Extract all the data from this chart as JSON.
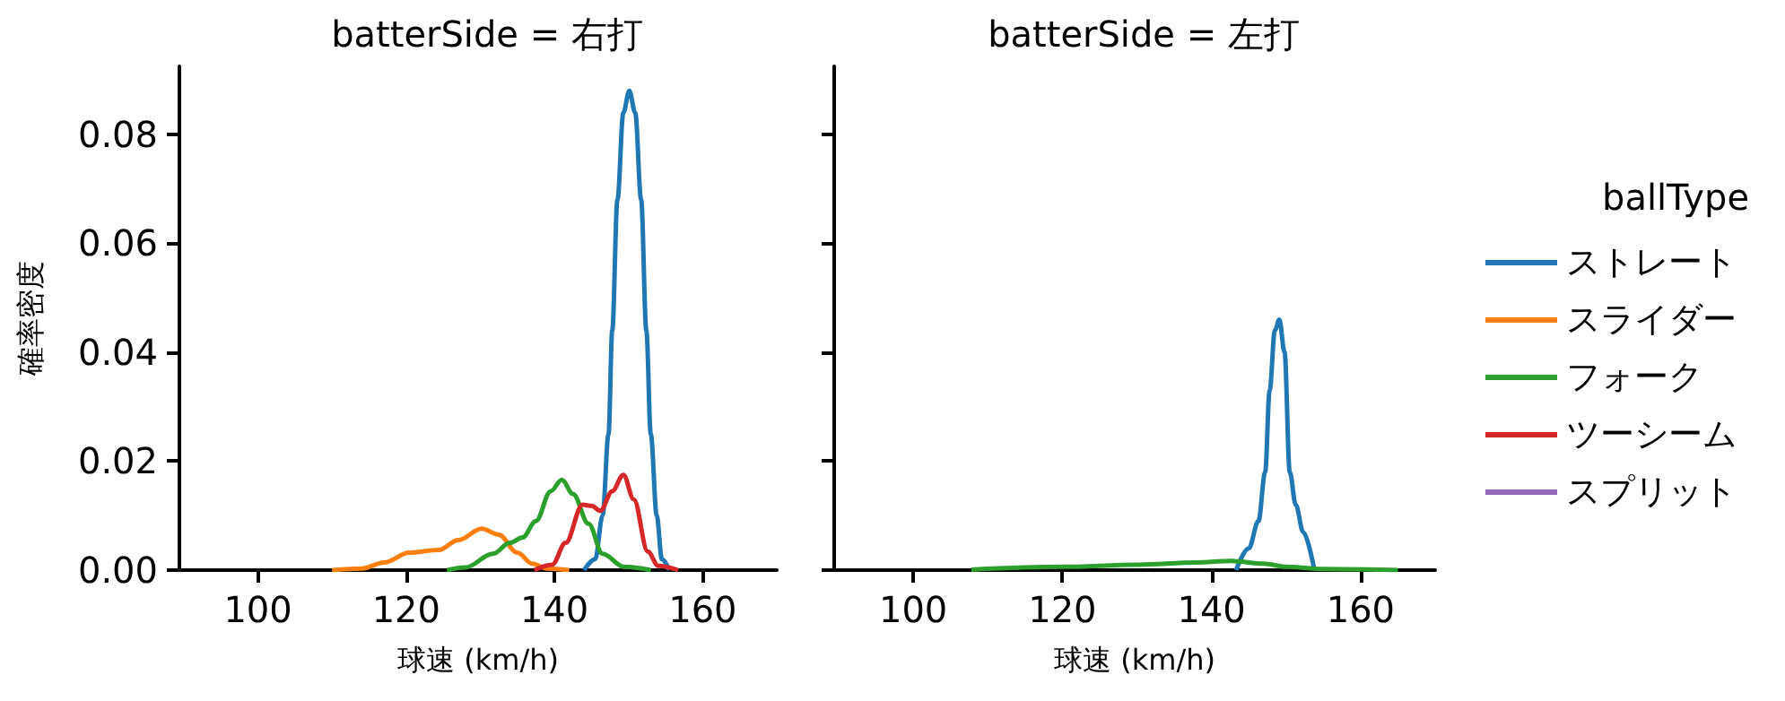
{
  "chart_data": [
    {
      "type": "line",
      "title": "batterSide = 右打",
      "xlabel": "球速 (km/h)",
      "ylabel": "確率密度",
      "xlim": [
        89.4,
        170
      ],
      "ylim": [
        0,
        0.0925
      ],
      "xticks": [
        100,
        120,
        140,
        160
      ],
      "yticks": [
        {
          "value": 0,
          "label": "0.00"
        },
        {
          "value": 0.02,
          "label": "0.02"
        },
        {
          "value": 0.04,
          "label": "0.04"
        },
        {
          "value": 0.06,
          "label": "0.06"
        },
        {
          "value": 0.08,
          "label": "0.08"
        }
      ],
      "grid": false,
      "legend": false,
      "series": [
        {
          "color": "#1f77b4",
          "x": [
            144,
            145.5,
            146.5,
            147.3,
            147.8,
            148.5,
            149.3,
            150.1,
            150.9,
            151.7,
            152.4,
            153,
            153.8,
            154.5,
            155.5
          ],
          "values": [
            0,
            0.002,
            0.01,
            0.025,
            0.044,
            0.068,
            0.084,
            0.088,
            0.084,
            0.068,
            0.044,
            0.025,
            0.01,
            0.002,
            0
          ]
        },
        {
          "color": "#ff7f0e",
          "x": [
            110,
            114,
            117,
            120.4,
            124.4,
            127,
            130.2,
            132.5,
            135,
            137,
            139,
            142
          ],
          "values": [
            0,
            0.0003,
            0.0014,
            0.0032,
            0.0037,
            0.0055,
            0.0076,
            0.0065,
            0.0032,
            0.0012,
            0.0003,
            0
          ]
        },
        {
          "color": "#2ca02c",
          "x": [
            125.5,
            128,
            131.7,
            134,
            135.7,
            137.5,
            139.5,
            141,
            142.5,
            144.6,
            146.5,
            149.4,
            153
          ],
          "values": [
            0,
            0.0005,
            0.003,
            0.005,
            0.006,
            0.009,
            0.0145,
            0.0166,
            0.014,
            0.0085,
            0.003,
            0.0006,
            0
          ]
        },
        {
          "color": "#d62728",
          "x": [
            137.3,
            139.7,
            141.5,
            143.8,
            145,
            146.2,
            147.8,
            149.3,
            150.7,
            152.6,
            154,
            156.7
          ],
          "values": [
            0,
            0.001,
            0.005,
            0.012,
            0.0118,
            0.0109,
            0.0145,
            0.0175,
            0.013,
            0.0034,
            0.0008,
            0
          ]
        }
      ]
    },
    {
      "type": "line",
      "title": "batterSide = 左打",
      "xlabel": "球速 (km/h)",
      "legend_title": "ballType",
      "xlim": [
        89.4,
        170
      ],
      "ylim": [
        0,
        0.0925
      ],
      "xticks": [
        100,
        120,
        140,
        160
      ],
      "yticks": [
        0,
        0.02,
        0.04,
        0.06,
        0.08
      ],
      "tick_labels": "x",
      "grid": false,
      "legend": "right",
      "series": [
        {
          "name": "ストレート",
          "color": "#1f77b4",
          "x": [
            143.3,
            145,
            146.3,
            147.2,
            147.8,
            148.5,
            149.1,
            149.8,
            150.5,
            151.3,
            152.3,
            153.8
          ],
          "values": [
            0,
            0.004,
            0.009,
            0.018,
            0.033,
            0.044,
            0.046,
            0.04,
            0.018,
            0.012,
            0.007,
            0
          ]
        },
        {
          "name": "スライダー",
          "color": "#ff7f0e"
        },
        {
          "name": "フォーク",
          "color": "#2ca02c",
          "x": [
            107.8,
            120,
            130,
            138,
            142.6,
            147,
            150,
            155,
            165
          ],
          "values": [
            0.0001,
            0.0006,
            0.001,
            0.0014,
            0.0017,
            0.0012,
            0.0006,
            0.0002,
            0
          ]
        },
        {
          "name": "ツーシーム",
          "color": "#d62728"
        },
        {
          "name": "スプリット",
          "color": "#9467bd"
        }
      ]
    }
  ]
}
